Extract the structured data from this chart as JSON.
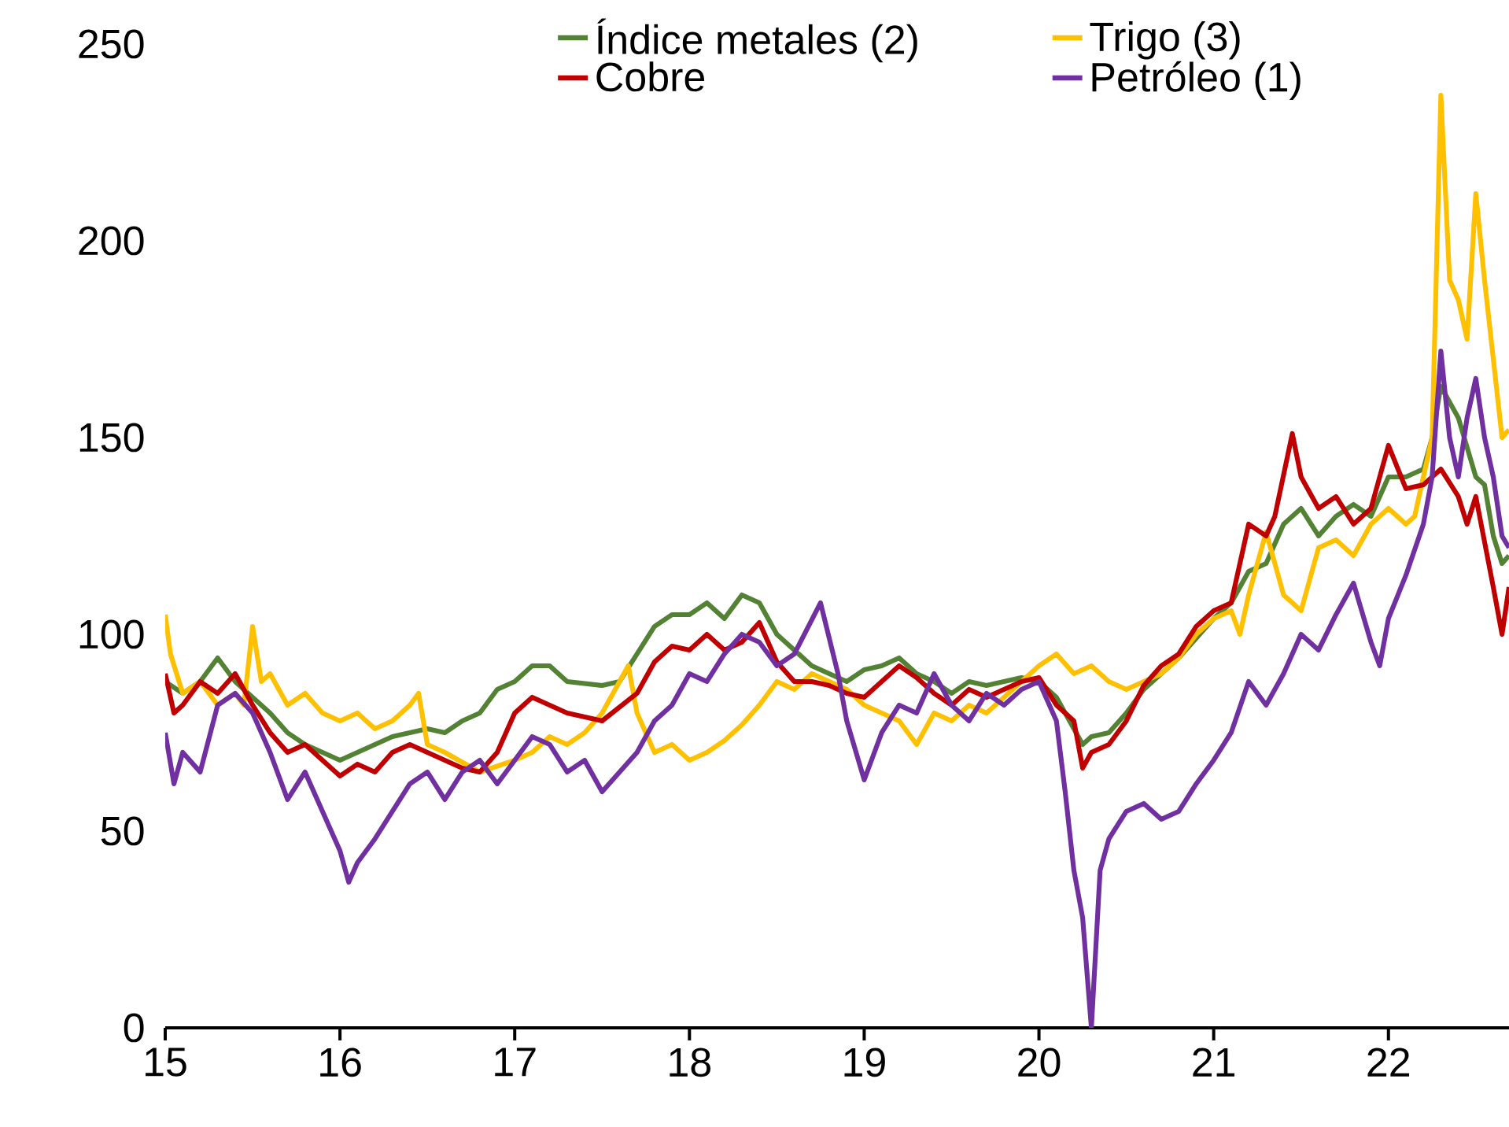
{
  "chart_data": {
    "type": "line",
    "xlim": [
      15,
      22.69
    ],
    "xticks": [
      15,
      16,
      17,
      18,
      19,
      20,
      21,
      22
    ],
    "ylim": [
      0,
      250
    ],
    "yticks": [
      0,
      50,
      100,
      150,
      200,
      250
    ],
    "legend": "top",
    "line_style": "solid",
    "series": [
      {
        "name": "Índice metales (2)",
        "color": "#548235",
        "x": [
          15.0,
          15.1,
          15.2,
          15.3,
          15.4,
          15.5,
          15.6,
          15.7,
          15.8,
          15.9,
          16.0,
          16.1,
          16.2,
          16.3,
          16.5,
          16.6,
          16.7,
          16.8,
          16.9,
          17.0,
          17.1,
          17.2,
          17.3,
          17.5,
          17.6,
          17.7,
          17.8,
          17.9,
          18.0,
          18.1,
          18.2,
          18.3,
          18.4,
          18.5,
          18.6,
          18.7,
          18.8,
          18.9,
          19.0,
          19.1,
          19.2,
          19.3,
          19.4,
          19.5,
          19.6,
          19.7,
          19.8,
          19.9,
          20.0,
          20.1,
          20.25,
          20.3,
          20.4,
          20.5,
          20.6,
          20.7,
          20.8,
          20.9,
          21.0,
          21.1,
          21.2,
          21.3,
          21.4,
          21.5,
          21.6,
          21.7,
          21.8,
          21.9,
          22.0,
          22.1,
          22.2,
          22.25,
          22.3,
          22.4,
          22.5,
          22.55,
          22.6,
          22.65,
          22.69
        ],
        "values": [
          88,
          85,
          88,
          94,
          88,
          84,
          80,
          75,
          72,
          70,
          68,
          70,
          72,
          74,
          76,
          75,
          78,
          80,
          86,
          88,
          92,
          92,
          88,
          87,
          88,
          95,
          102,
          105,
          105,
          108,
          104,
          110,
          108,
          100,
          96,
          92,
          90,
          88,
          91,
          92,
          94,
          90,
          88,
          85,
          88,
          87,
          88,
          89,
          88,
          84,
          72,
          74,
          75,
          80,
          86,
          90,
          94,
          99,
          104,
          108,
          116,
          118,
          128,
          132,
          125,
          130,
          133,
          130,
          140,
          140,
          142,
          150,
          163,
          155,
          140,
          138,
          125,
          118,
          120
        ]
      },
      {
        "name": "Trigo (3)",
        "color": "#ffc000",
        "x": [
          15.0,
          15.03,
          15.1,
          15.2,
          15.3,
          15.4,
          15.45,
          15.5,
          15.55,
          15.6,
          15.7,
          15.8,
          15.9,
          16.0,
          16.1,
          16.2,
          16.3,
          16.4,
          16.45,
          16.5,
          16.6,
          16.8,
          17.0,
          17.1,
          17.2,
          17.3,
          17.4,
          17.5,
          17.6,
          17.65,
          17.7,
          17.8,
          17.9,
          18.0,
          18.1,
          18.2,
          18.3,
          18.4,
          18.5,
          18.6,
          18.7,
          18.8,
          18.9,
          19.0,
          19.1,
          19.2,
          19.3,
          19.4,
          19.5,
          19.6,
          19.7,
          19.8,
          19.9,
          20.0,
          20.1,
          20.2,
          20.3,
          20.4,
          20.5,
          20.6,
          20.7,
          20.8,
          20.9,
          21.0,
          21.1,
          21.15,
          21.2,
          21.3,
          21.35,
          21.4,
          21.5,
          21.6,
          21.7,
          21.8,
          21.9,
          22.0,
          22.1,
          22.15,
          22.2,
          22.25,
          22.3,
          22.35,
          22.4,
          22.45,
          22.5,
          22.55,
          22.6,
          22.65,
          22.69
        ],
        "values": [
          105,
          95,
          85,
          88,
          82,
          85,
          82,
          102,
          88,
          90,
          82,
          85,
          80,
          78,
          80,
          76,
          78,
          82,
          85,
          72,
          70,
          65,
          68,
          70,
          74,
          72,
          75,
          80,
          88,
          92,
          80,
          70,
          72,
          68,
          70,
          73,
          77,
          82,
          88,
          86,
          90,
          88,
          86,
          82,
          80,
          78,
          72,
          80,
          78,
          82,
          80,
          84,
          88,
          92,
          95,
          90,
          92,
          88,
          86,
          88,
          90,
          94,
          100,
          104,
          106,
          100,
          110,
          126,
          118,
          110,
          106,
          122,
          124,
          120,
          128,
          132,
          128,
          130,
          140,
          150,
          237,
          190,
          185,
          175,
          212,
          190,
          170,
          150,
          152
        ]
      },
      {
        "name": "Cobre",
        "color": "#c00000",
        "x": [
          15.0,
          15.05,
          15.1,
          15.2,
          15.3,
          15.4,
          15.5,
          15.6,
          15.7,
          15.8,
          15.9,
          16.0,
          16.1,
          16.2,
          16.3,
          16.4,
          16.5,
          16.6,
          16.7,
          16.8,
          16.9,
          17.0,
          17.1,
          17.2,
          17.3,
          17.5,
          17.7,
          17.8,
          17.9,
          18.0,
          18.1,
          18.2,
          18.3,
          18.4,
          18.5,
          18.6,
          18.7,
          18.8,
          18.9,
          19.0,
          19.1,
          19.2,
          19.3,
          19.4,
          19.5,
          19.6,
          19.7,
          19.8,
          19.9,
          20.0,
          20.1,
          20.2,
          20.25,
          20.3,
          20.4,
          20.5,
          20.6,
          20.7,
          20.8,
          20.9,
          21.0,
          21.1,
          21.2,
          21.3,
          21.35,
          21.45,
          21.5,
          21.6,
          21.7,
          21.8,
          21.9,
          22.0,
          22.1,
          22.2,
          22.3,
          22.4,
          22.45,
          22.5,
          22.6,
          22.65,
          22.69
        ],
        "values": [
          90,
          80,
          82,
          88,
          85,
          90,
          82,
          75,
          70,
          72,
          68,
          64,
          67,
          65,
          70,
          72,
          70,
          68,
          66,
          65,
          70,
          80,
          84,
          82,
          80,
          78,
          85,
          93,
          97,
          96,
          100,
          96,
          98,
          103,
          93,
          88,
          88,
          87,
          85,
          84,
          88,
          92,
          89,
          85,
          82,
          86,
          84,
          86,
          88,
          89,
          82,
          78,
          66,
          70,
          72,
          78,
          87,
          92,
          95,
          102,
          106,
          108,
          128,
          125,
          130,
          151,
          140,
          132,
          135,
          128,
          132,
          148,
          137,
          138,
          142,
          135,
          128,
          135,
          112,
          100,
          112
        ]
      },
      {
        "name": "Petróleo (1)",
        "color": "#7030a0",
        "x": [
          15.0,
          15.05,
          15.1,
          15.2,
          15.3,
          15.4,
          15.5,
          15.6,
          15.7,
          15.8,
          15.9,
          16.0,
          16.05,
          16.1,
          16.2,
          16.3,
          16.4,
          16.5,
          16.6,
          16.7,
          16.8,
          16.9,
          17.0,
          17.1,
          17.2,
          17.3,
          17.4,
          17.5,
          17.6,
          17.7,
          17.8,
          17.9,
          18.0,
          18.1,
          18.2,
          18.3,
          18.4,
          18.5,
          18.6,
          18.75,
          18.85,
          18.9,
          19.0,
          19.1,
          19.2,
          19.3,
          19.4,
          19.5,
          19.6,
          19.7,
          19.8,
          19.9,
          20.0,
          20.1,
          20.15,
          20.2,
          20.25,
          20.3,
          20.35,
          20.4,
          20.5,
          20.6,
          20.7,
          20.8,
          20.9,
          21.0,
          21.1,
          21.2,
          21.3,
          21.4,
          21.5,
          21.6,
          21.7,
          21.8,
          21.9,
          21.95,
          22.0,
          22.1,
          22.2,
          22.25,
          22.3,
          22.35,
          22.4,
          22.45,
          22.5,
          22.55,
          22.6,
          22.65,
          22.69
        ],
        "values": [
          75,
          62,
          70,
          65,
          82,
          85,
          80,
          70,
          58,
          65,
          55,
          45,
          37,
          42,
          48,
          55,
          62,
          65,
          58,
          65,
          68,
          62,
          68,
          74,
          72,
          65,
          68,
          60,
          65,
          70,
          78,
          82,
          90,
          88,
          95,
          100,
          98,
          92,
          95,
          108,
          90,
          78,
          63,
          75,
          82,
          80,
          90,
          82,
          78,
          85,
          82,
          86,
          88,
          78,
          60,
          40,
          28,
          0,
          40,
          48,
          55,
          57,
          53,
          55,
          62,
          68,
          75,
          88,
          82,
          90,
          100,
          96,
          105,
          113,
          98,
          92,
          104,
          115,
          128,
          140,
          172,
          150,
          140,
          155,
          165,
          150,
          140,
          125,
          122
        ]
      }
    ]
  }
}
